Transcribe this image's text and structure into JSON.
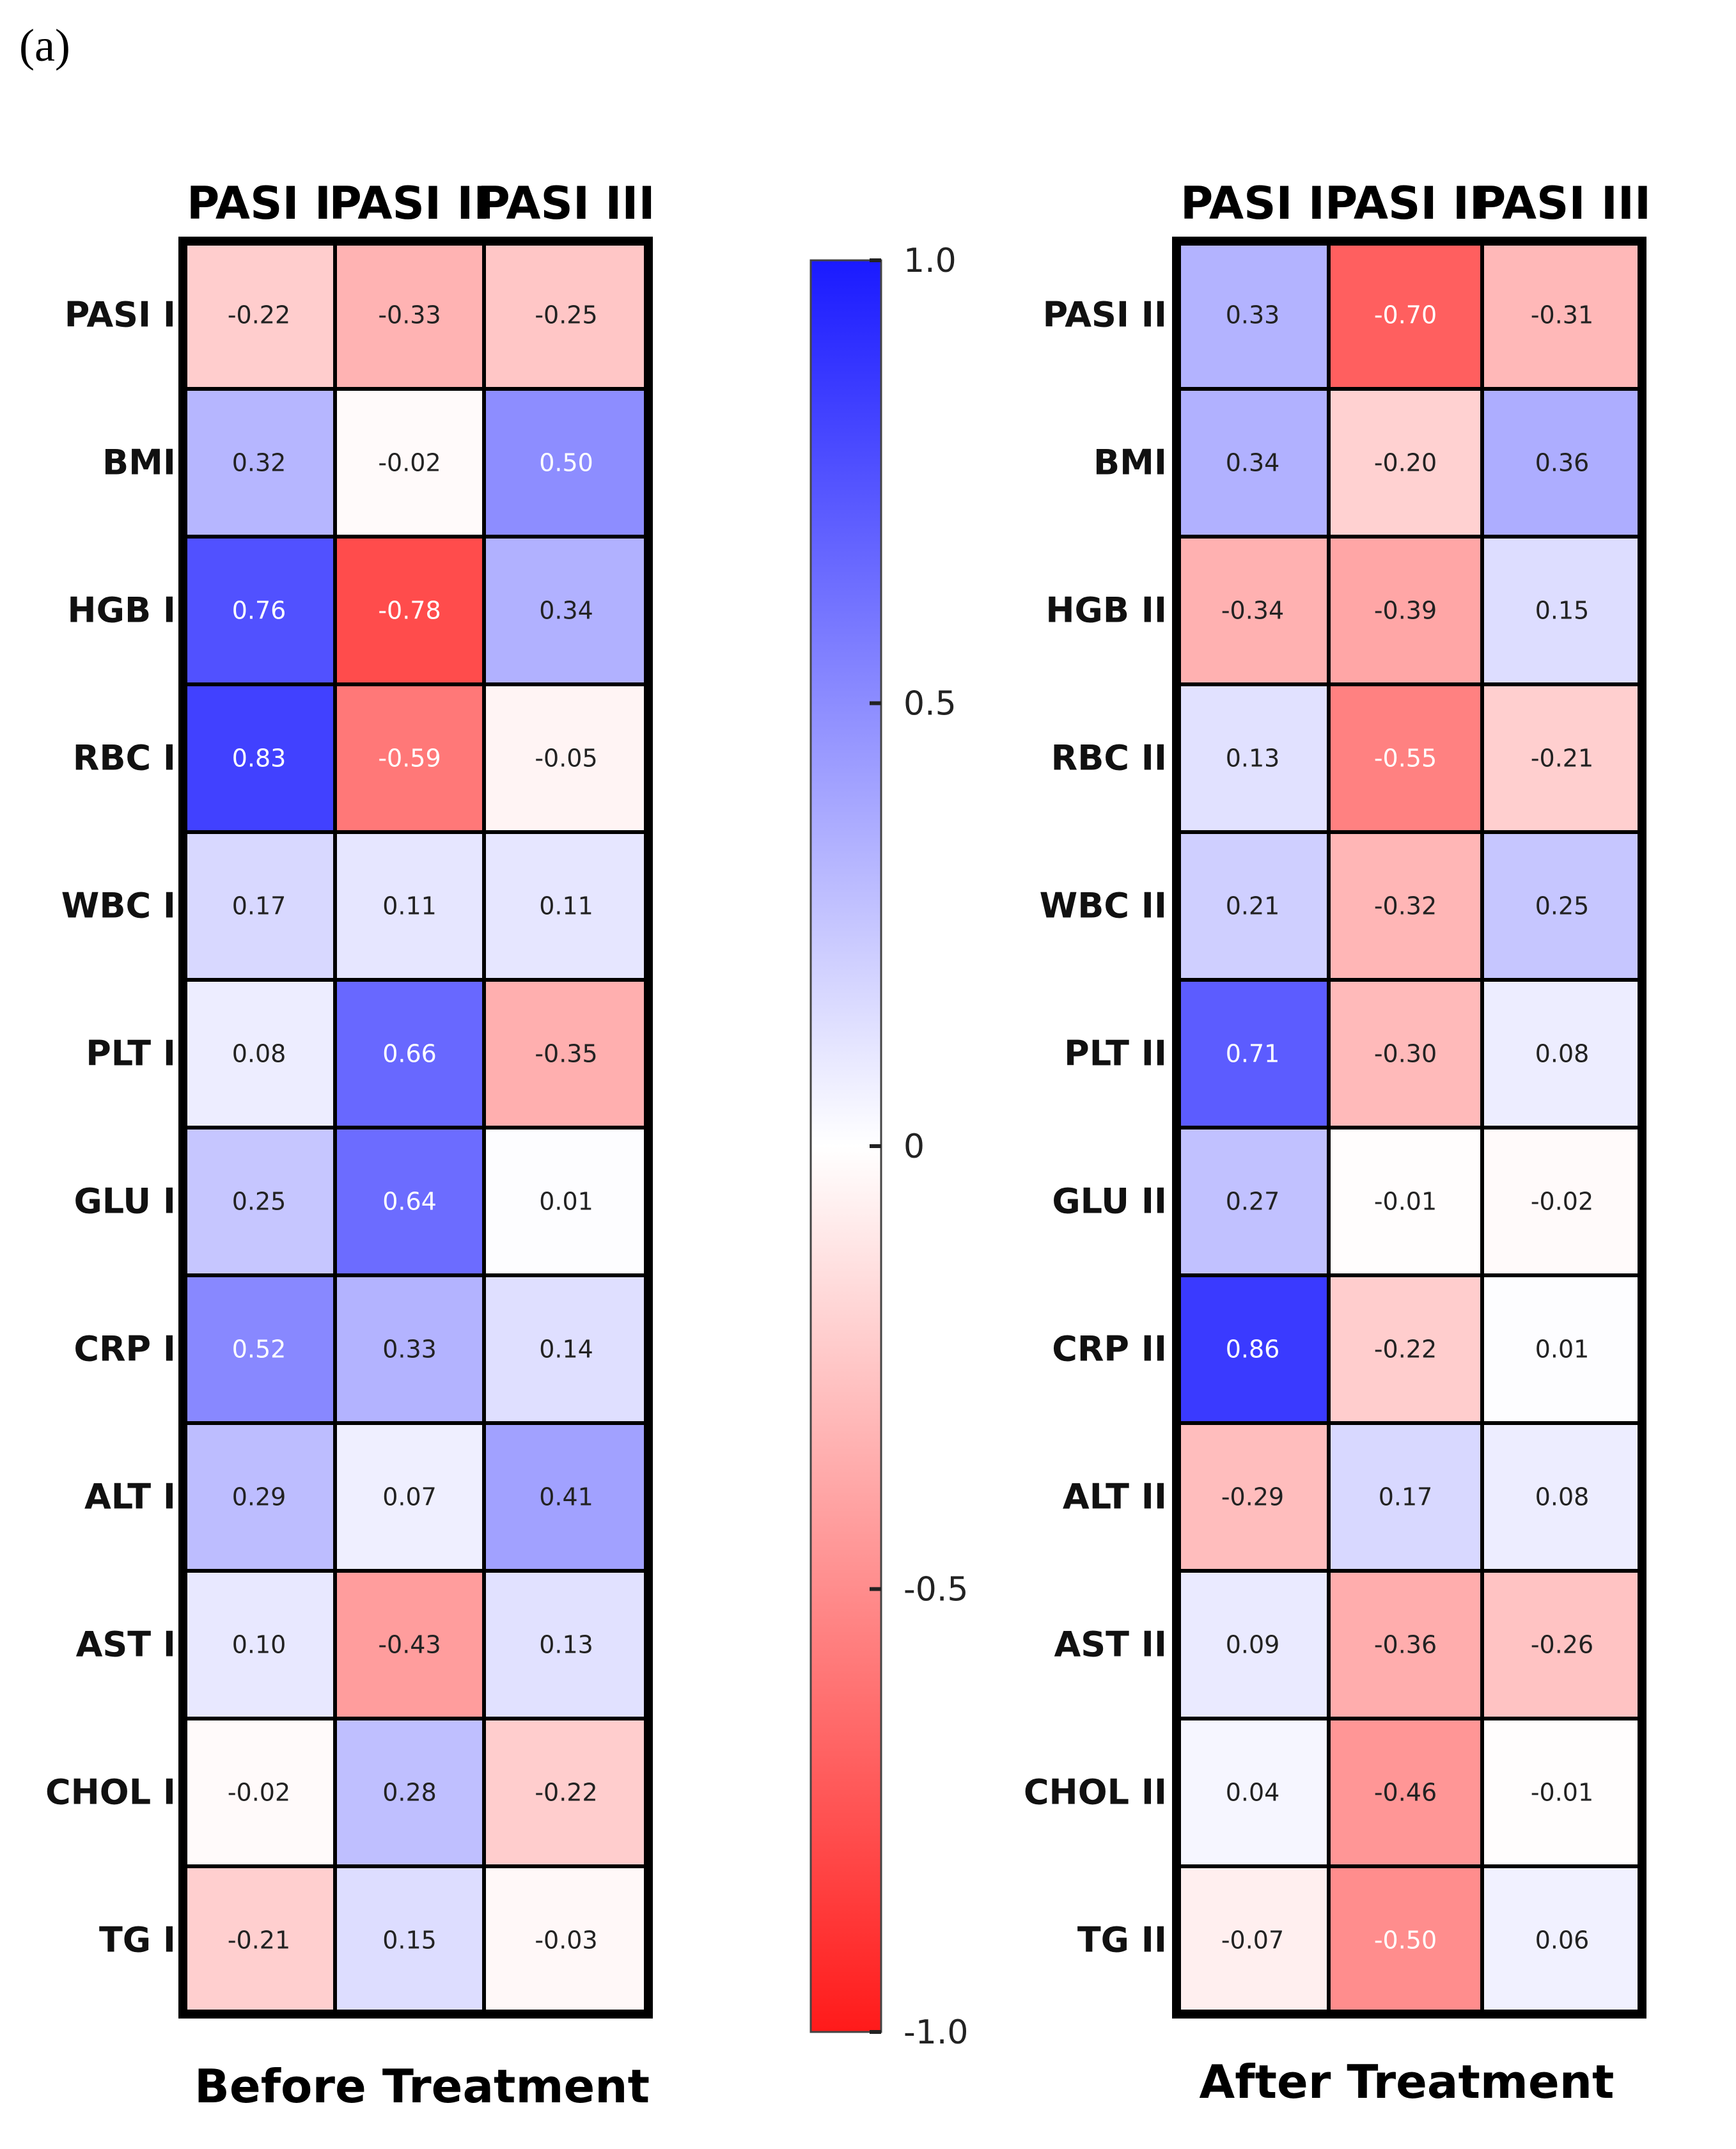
{
  "panel_label": "(a)",
  "chart_data": {
    "type": "heatmap",
    "colorbar": {
      "min": -1.0,
      "max": 1.0,
      "ticks": [
        "1.0",
        "0.5",
        "0",
        "-0.5",
        "-1.0"
      ],
      "tick_values": [
        1.0,
        0.5,
        0,
        -0.5,
        -1.0
      ],
      "color_high": "#1a1aff",
      "color_mid": "#ffffff",
      "color_low": "#ff1a1a"
    },
    "panels": [
      {
        "title": "Before Treatment",
        "columns": [
          "PASI I",
          "PASI II",
          "PASI III"
        ],
        "rows": [
          "PASI I",
          "BMI",
          "HGB I",
          "RBC I",
          "WBC I",
          "PLT I",
          "GLU I",
          "CRP I",
          "ALT I",
          "AST I",
          "CHOL I",
          "TG I"
        ],
        "values": [
          [
            -0.22,
            -0.33,
            -0.25
          ],
          [
            0.32,
            -0.02,
            0.5
          ],
          [
            0.76,
            -0.78,
            0.34
          ],
          [
            0.83,
            -0.59,
            -0.05
          ],
          [
            0.17,
            0.11,
            0.11
          ],
          [
            0.08,
            0.66,
            -0.35
          ],
          [
            0.25,
            0.64,
            0.01
          ],
          [
            0.52,
            0.33,
            0.14
          ],
          [
            0.29,
            0.07,
            0.41
          ],
          [
            0.1,
            -0.43,
            0.13
          ],
          [
            -0.02,
            0.28,
            -0.22
          ],
          [
            -0.21,
            0.15,
            -0.03
          ]
        ],
        "labels": [
          [
            "-0.22",
            "-0.33",
            "-0.25"
          ],
          [
            "0.32",
            "-0.02",
            "0.50"
          ],
          [
            "0.76",
            "-0.78",
            "0.34"
          ],
          [
            "0.83",
            "-0.59",
            "-0.05"
          ],
          [
            "0.17",
            "0.11",
            "0.11"
          ],
          [
            "0.08",
            "0.66",
            "-0.35"
          ],
          [
            "0.25",
            "0.64",
            "0.01"
          ],
          [
            "0.52",
            "0.33",
            "0.14"
          ],
          [
            "0.29",
            "0.07",
            "0.41"
          ],
          [
            "0.10",
            "-0.43",
            "0.13"
          ],
          [
            "-0.02",
            "0.28",
            "-0.22"
          ],
          [
            "-0.21",
            "0.15",
            "-0.03"
          ]
        ]
      },
      {
        "title": "After Treatment",
        "columns": [
          "PASI I",
          "PASI II",
          "PASI III"
        ],
        "rows": [
          "PASI II",
          "BMI",
          "HGB II",
          "RBC II",
          "WBC II",
          "PLT II",
          "GLU II",
          "CRP II",
          "ALT II",
          "AST II",
          "CHOL II",
          "TG II"
        ],
        "values": [
          [
            0.33,
            -0.7,
            -0.31
          ],
          [
            0.34,
            -0.2,
            0.36
          ],
          [
            -0.34,
            -0.39,
            0.15
          ],
          [
            0.13,
            -0.55,
            -0.21
          ],
          [
            0.21,
            -0.32,
            0.25
          ],
          [
            0.71,
            -0.3,
            0.08
          ],
          [
            0.27,
            -0.01,
            -0.02
          ],
          [
            0.86,
            -0.22,
            0.01
          ],
          [
            -0.29,
            0.17,
            0.08
          ],
          [
            0.09,
            -0.36,
            -0.26
          ],
          [
            0.04,
            -0.46,
            -0.01
          ],
          [
            -0.07,
            -0.5,
            0.06
          ]
        ],
        "labels": [
          [
            "0.33",
            "-0.70",
            "-0.31"
          ],
          [
            "0.34",
            "-0.20",
            "0.36"
          ],
          [
            "-0.34",
            "-0.39",
            "0.15"
          ],
          [
            "0.13",
            "-0.55",
            "-0.21"
          ],
          [
            "0.21",
            "-0.32",
            "0.25"
          ],
          [
            "0.71",
            "-0.30",
            "0.08"
          ],
          [
            "0.27",
            "-0.01",
            "-0.02"
          ],
          [
            "0.86",
            "-0.22",
            "0.01"
          ],
          [
            "-0.29",
            "0.17",
            "0.08"
          ],
          [
            "0.09",
            "-0.36",
            "-0.26"
          ],
          [
            "0.04",
            "-0.46",
            "-0.01"
          ],
          [
            "-0.07",
            "-0.50",
            "0.06"
          ]
        ]
      }
    ]
  }
}
